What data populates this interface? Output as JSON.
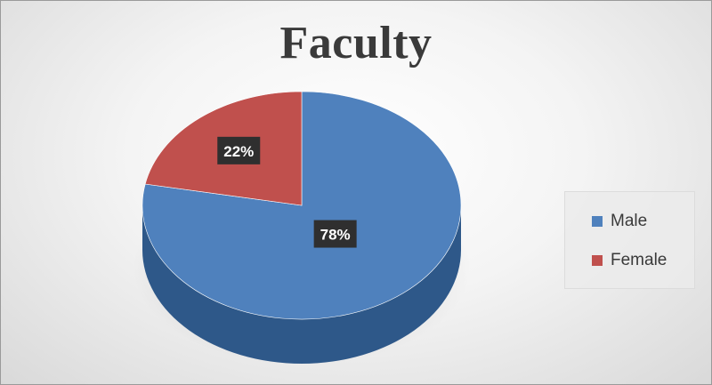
{
  "chart_data": {
    "type": "pie",
    "title": "Faculty",
    "slices": [
      {
        "name": "Male",
        "value": 78,
        "label": "78%",
        "color": "#4f81bd",
        "side_color": "#2e5889"
      },
      {
        "name": "Female",
        "value": 22,
        "label": "22%",
        "color": "#c0504d",
        "side_color": "#8e3331"
      }
    ],
    "legend_position": "right"
  }
}
